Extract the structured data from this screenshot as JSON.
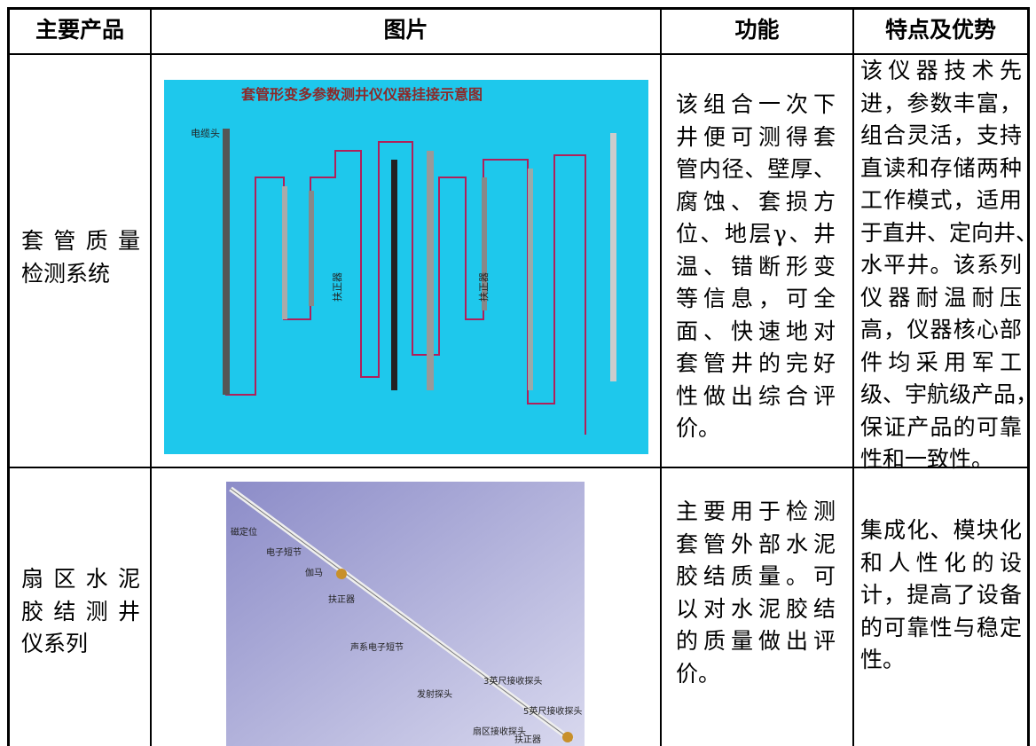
{
  "table": {
    "header": [
      "主要产品",
      "图片",
      "功能",
      "特点及优势"
    ],
    "rows": [
      {
        "product": [
          "套管质量",
          "检测系统"
        ],
        "image": {
          "title": "套管形变多参数测井仪仪器挂接示意图",
          "labels": [
            "电缆头",
            "扶正器",
            "扶正器"
          ]
        },
        "function": [
          "该组合一次下",
          "井便可测得套",
          "管内径、壁厚、",
          "腐蚀、套损方",
          "位、地层γ、井",
          "温、错断形变",
          "等信息，可全",
          "面、快速地对",
          "套管井的完好",
          "性做出综合评",
          "价。"
        ],
        "features": [
          "该仪器技术先",
          "进，参数丰富，",
          "组合灵活，支持",
          "直读和存储两种",
          "工作模式，适用",
          "于直井、定向井、",
          "水平井。该系列",
          "仪器耐温耐压",
          "高，仪器核心部",
          "件均采用军工",
          "级、宇航级产品，",
          "保证产品的可靠",
          "性和一致性。"
        ]
      },
      {
        "product": [
          "扇区水泥",
          "胶结测井",
          "仪系列"
        ],
        "image": {
          "labels": [
            "磁定位",
            "电子短节",
            "伽马",
            "扶正器",
            "声系电子短节",
            "发射探头",
            "3英尺接收探头",
            "扇区接收探头",
            "5英尺接收探头",
            "扶正器"
          ]
        },
        "function": [
          "主要用于检测",
          "套管外部水泥",
          "胶结质量。可",
          "以对水泥胶结",
          "的质量做出评",
          "价。"
        ],
        "features": [
          "集成化、模块化",
          "和人性化的设",
          "计，提高了设备",
          "的可靠性与稳定",
          "性。"
        ]
      }
    ]
  }
}
